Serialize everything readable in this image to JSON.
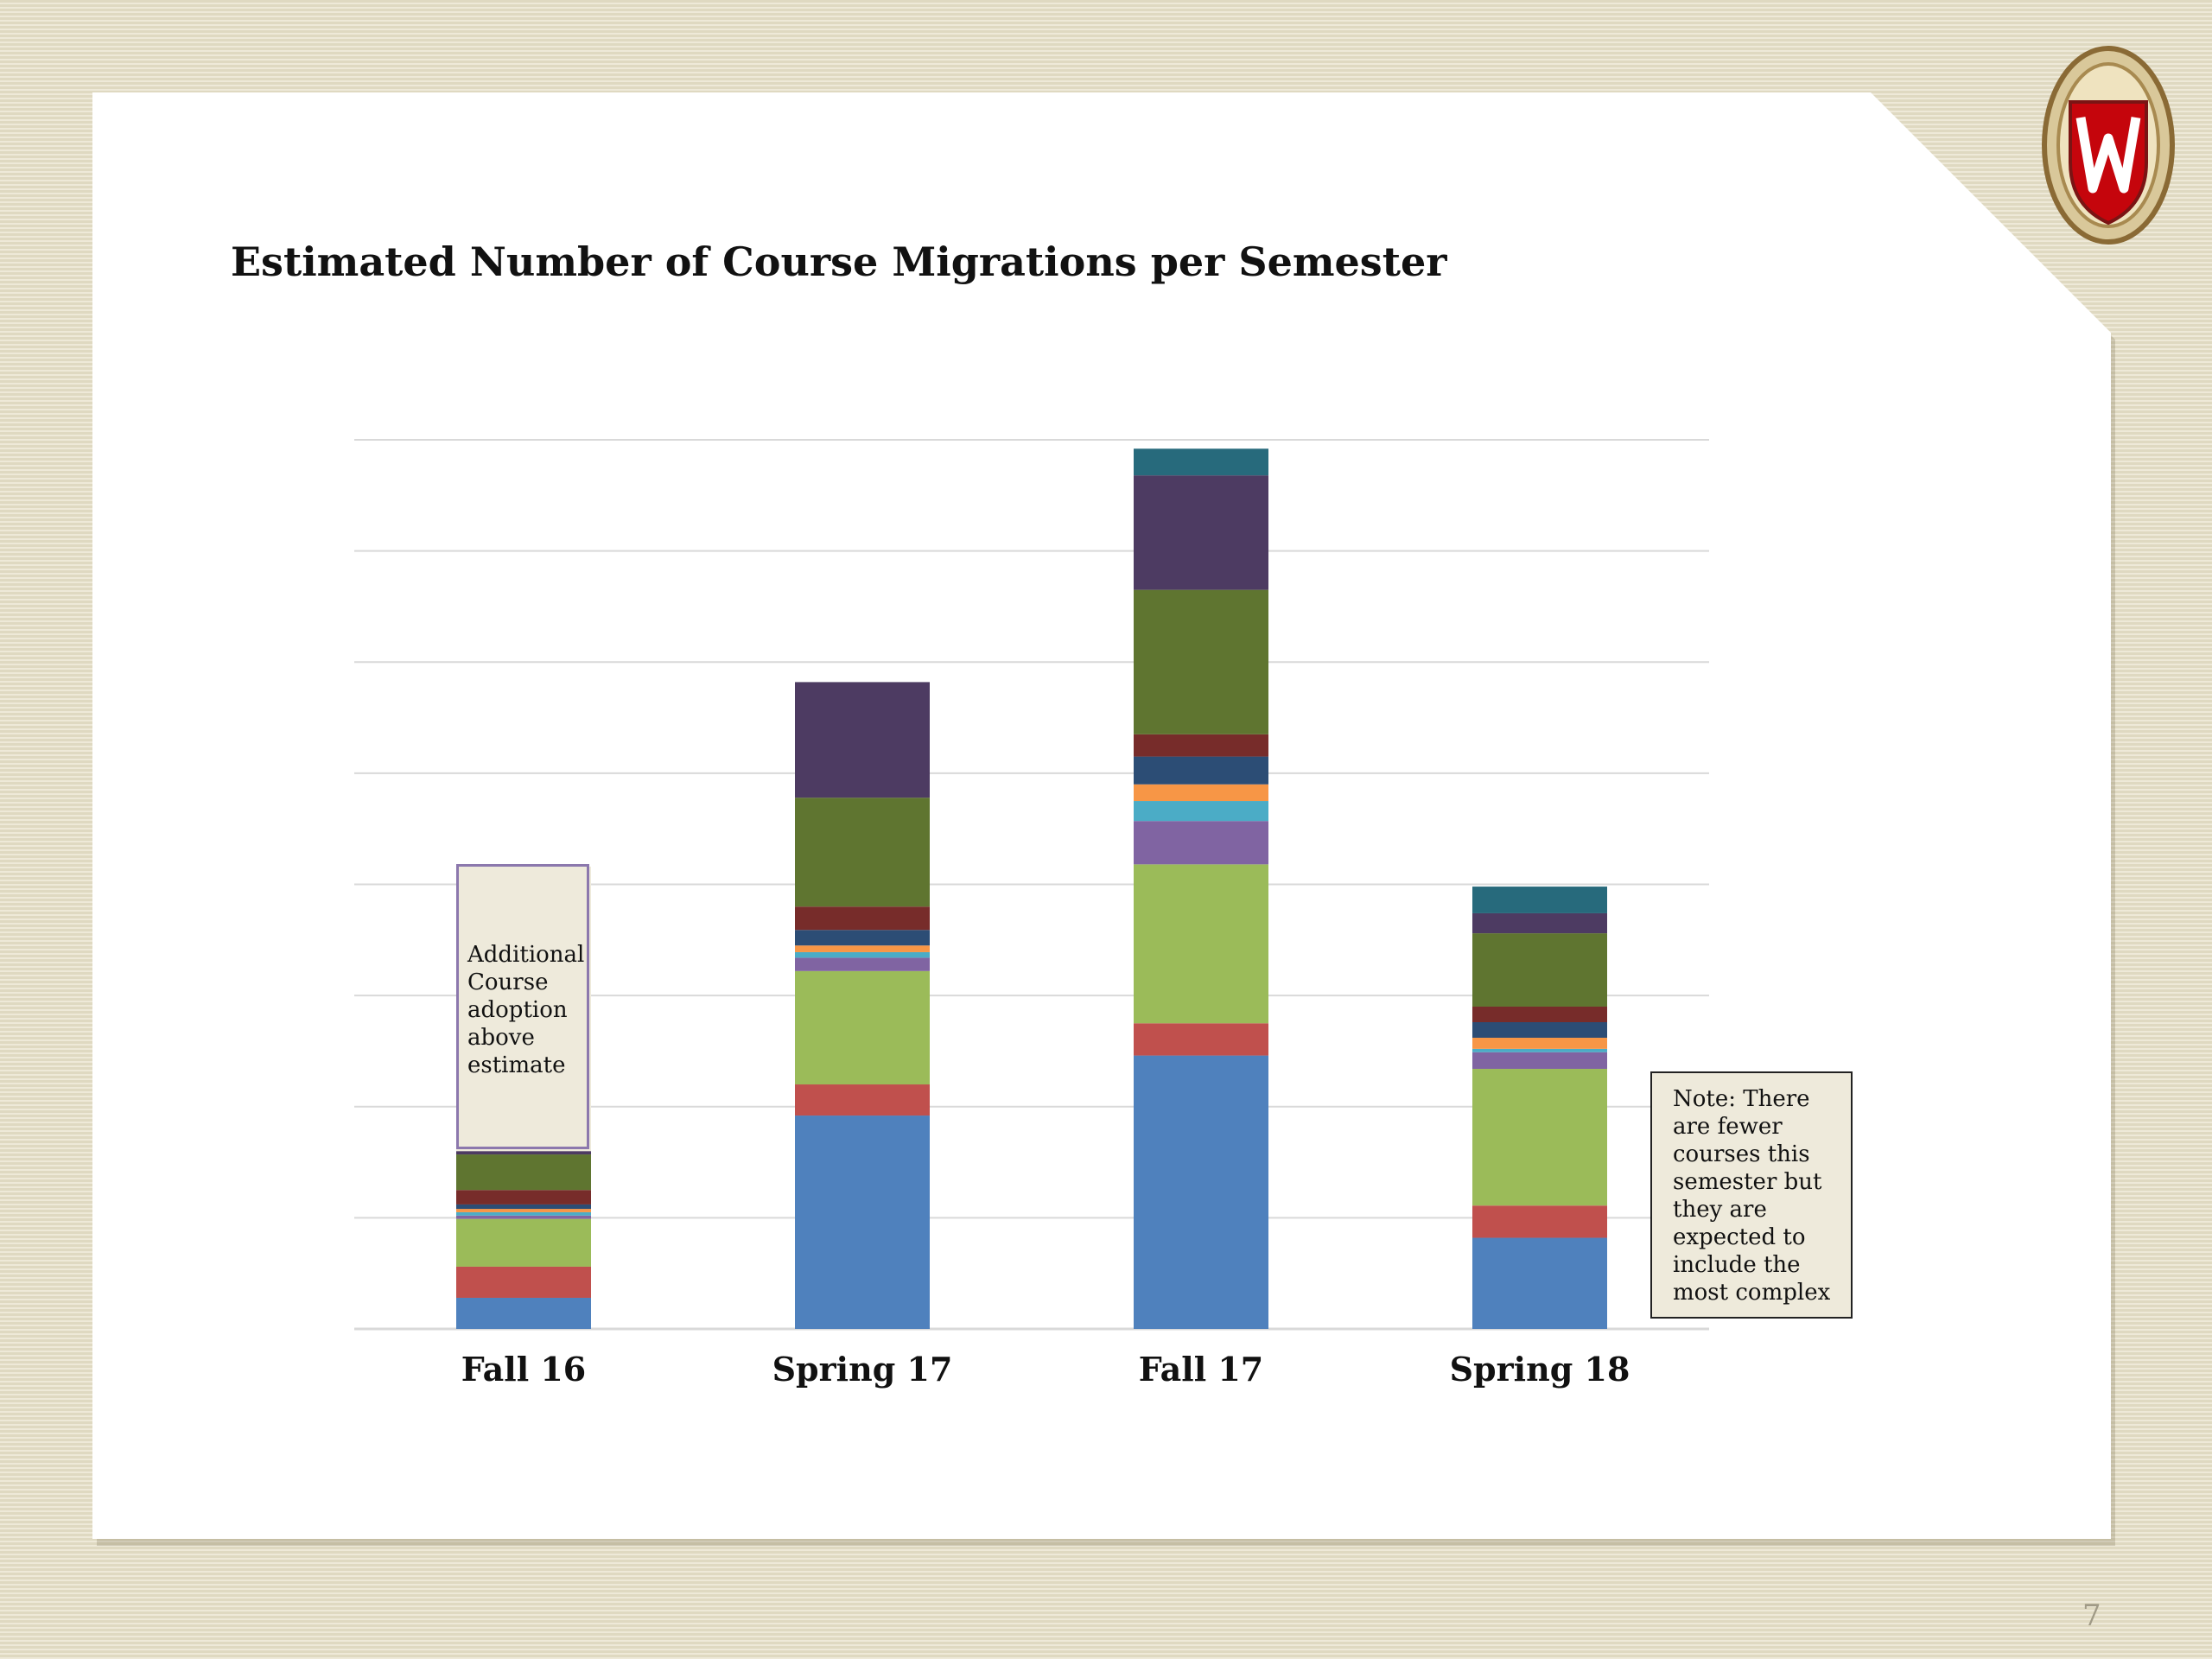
{
  "title": "Estimated Number of Course Migrations per Semester",
  "page_number": "7",
  "callouts": {
    "fall16": "Additional Course adoption above estimate",
    "spring18": "Note: There are fewer courses this semester but they are expected to include the most complex"
  },
  "colors": {
    "background": "#e6e0c7",
    "gridline": "#d9d9d9",
    "crest_red": "#c5050c",
    "crest_gold": "#c8a25a"
  },
  "chart_data": {
    "type": "bar",
    "stacked": true,
    "categories": [
      "Fall 16",
      "Spring 17",
      "Fall 17",
      "Spring 18"
    ],
    "ylim": [
      0,
      8
    ],
    "gridlines": [
      0,
      1,
      2,
      3,
      4,
      5,
      6,
      7,
      8
    ],
    "grid": true,
    "y_tick_labels_shown": false,
    "legend": "none",
    "series": [
      {
        "color": "#4f81bd",
        "values": [
          0.28,
          1.92,
          2.46,
          0.82
        ]
      },
      {
        "color": "#c0504d",
        "values": [
          0.28,
          0.28,
          0.29,
          0.29
        ]
      },
      {
        "color": "#9bbb59",
        "values": [
          0.43,
          1.02,
          1.43,
          1.23
        ]
      },
      {
        "color": "#8064a2",
        "values": [
          0.03,
          0.12,
          0.39,
          0.15
        ]
      },
      {
        "color": "#4bacc6",
        "values": [
          0.03,
          0.05,
          0.18,
          0.03
        ]
      },
      {
        "color": "#f79646",
        "values": [
          0.03,
          0.06,
          0.15,
          0.1
        ]
      },
      {
        "color": "#2c4d75",
        "values": [
          0.04,
          0.14,
          0.25,
          0.14
        ]
      },
      {
        "color": "#772c2a",
        "values": [
          0.13,
          0.21,
          0.2,
          0.14
        ]
      },
      {
        "color": "#5f7530",
        "values": [
          0.32,
          0.98,
          1.3,
          0.66
        ]
      },
      {
        "color": "#4d3b62",
        "values": [
          0.03,
          1.04,
          1.03,
          0.18
        ]
      },
      {
        "color": "#276a7c",
        "values": [
          0.0,
          0.0,
          0.24,
          0.24
        ]
      },
      {
        "color": "#eeeadb",
        "values": [
          2.56,
          0.0,
          0.0,
          0.0
        ]
      }
    ]
  }
}
